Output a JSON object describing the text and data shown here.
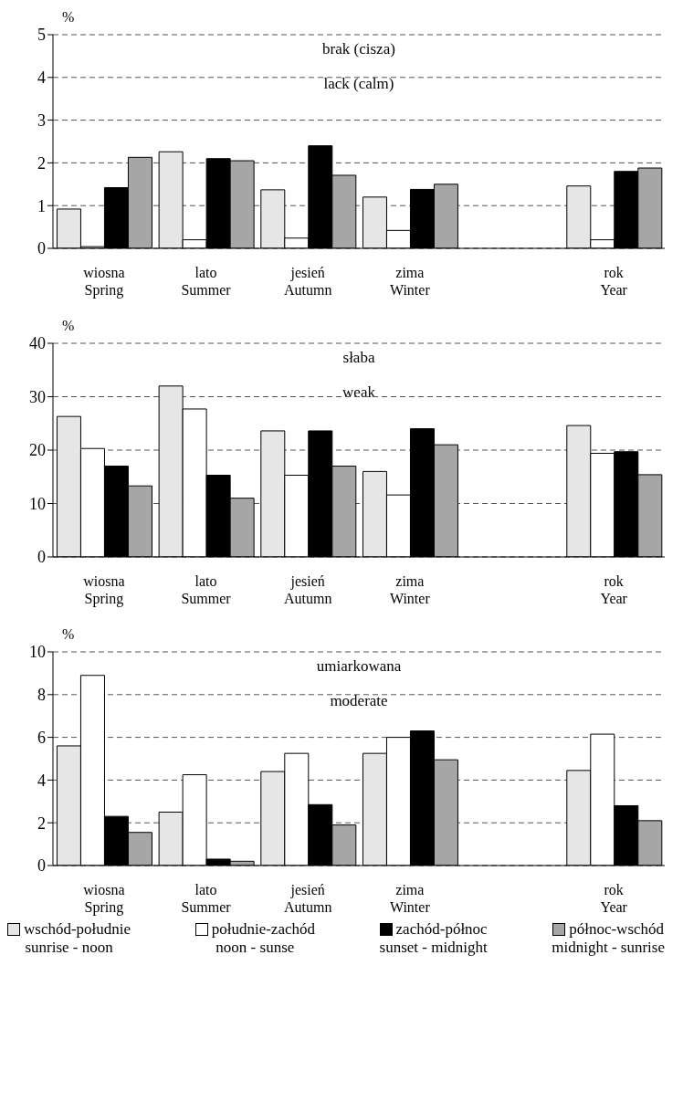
{
  "chart_data": [
    {
      "type": "bar",
      "ylabel": "%",
      "annotations": [
        "brak (cisza)",
        "lack (calm)"
      ],
      "categories": [
        "wiosna\nSpring",
        "lato\nSummer",
        "jesień\nAutumn",
        "zima\nWinter",
        null,
        "rok\nYear"
      ],
      "ylim": [
        0,
        5
      ],
      "yticks": [
        0,
        1,
        2,
        3,
        4,
        5
      ],
      "grid": "y",
      "legend": false,
      "series": [
        {
          "color": "#e6e6e6",
          "values": [
            0.92,
            2.26,
            1.37,
            1.2,
            null,
            1.46
          ]
        },
        {
          "color": "#ffffff",
          "values": [
            0.04,
            0.2,
            0.24,
            0.42,
            null,
            0.2
          ]
        },
        {
          "color": "#000000",
          "values": [
            1.42,
            2.1,
            2.4,
            1.38,
            null,
            1.8
          ]
        },
        {
          "color": "#a6a6a6",
          "values": [
            2.13,
            2.05,
            1.71,
            1.5,
            null,
            1.88
          ]
        }
      ]
    },
    {
      "type": "bar",
      "ylabel": "%",
      "annotations": [
        "słaba",
        "weak"
      ],
      "categories": [
        "wiosna\nSpring",
        "lato\nSummer",
        "jesień\nAutumn",
        "zima\nWinter",
        null,
        "rok\nYear"
      ],
      "ylim": [
        0,
        40
      ],
      "yticks": [
        0,
        10,
        20,
        30,
        40
      ],
      "grid": "y",
      "legend": false,
      "series": [
        {
          "color": "#e6e6e6",
          "values": [
            26.3,
            32,
            23.6,
            16,
            null,
            24.6
          ]
        },
        {
          "color": "#ffffff",
          "values": [
            20.3,
            27.7,
            15.3,
            11.6,
            null,
            19.4
          ]
        },
        {
          "color": "#000000",
          "values": [
            17,
            15.3,
            23.6,
            24,
            null,
            19.7
          ]
        },
        {
          "color": "#a6a6a6",
          "values": [
            13.3,
            11,
            17,
            21,
            null,
            15.4
          ]
        }
      ]
    },
    {
      "type": "bar",
      "ylabel": "%",
      "annotations": [
        "umiarkowana",
        "moderate"
      ],
      "categories": [
        "wiosna\nSpring",
        "lato\nSummer",
        "jesień\nAutumn",
        "zima\nWinter",
        null,
        "rok\nYear"
      ],
      "ylim": [
        0,
        10
      ],
      "yticks": [
        0,
        2,
        4,
        6,
        8,
        10
      ],
      "grid": "y",
      "legend": "bottom",
      "series": [
        {
          "name": "wschód-południe\nsunrise - noon",
          "color": "#e6e6e6",
          "values": [
            5.6,
            2.5,
            4.4,
            5.25,
            null,
            4.45
          ]
        },
        {
          "name": "południe-zachód\nnoon - sunse",
          "color": "#ffffff",
          "values": [
            8.9,
            4.25,
            5.25,
            6.0,
            null,
            6.15
          ]
        },
        {
          "name": "zachód-północ\nsunset - midnight",
          "color": "#000000",
          "values": [
            2.3,
            0.3,
            2.85,
            6.3,
            null,
            2.8
          ]
        },
        {
          "name": "północ-wschód\nmidnight - sunrise",
          "color": "#a6a6a6",
          "values": [
            1.55,
            0.2,
            1.9,
            4.95,
            null,
            2.1
          ]
        }
      ]
    }
  ]
}
